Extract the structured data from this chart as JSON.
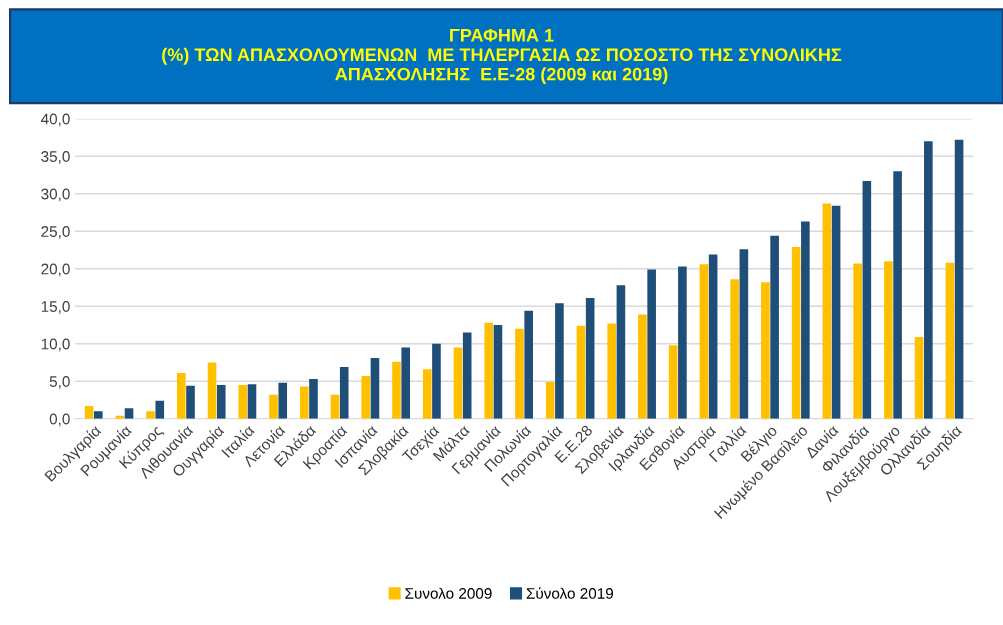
{
  "chart_data": {
    "type": "bar",
    "title": "ΓΡΑΦΗΜΑ 1\n(%) ΤΩΝ ΑΠΑΣΧΟΛΟΥΜΕΝΩΝ  ΜΕ ΤΗΛΕΡΓΑΣΙΑ ΩΣ ΠΟΣΟΣΤΟ ΤΗΣ ΣΥΝΟΛΙΚΗΣ\nΑΠΑΣΧΟΛΗΣΗΣ  Ε.Ε-28 (2009 και 2019)",
    "categories": [
      "Βουλγαρία",
      "Ρουμανία",
      "Κύπρος",
      "Λιθουανία",
      "Ουγγαρία",
      "Ιταλία",
      "Λετονία",
      "Ελλάδα",
      "Κροατία",
      "Ισπανία",
      "Σλοβακία",
      "Τσεχία",
      "Μάλτα",
      "Γερμανία",
      "Πολωνία",
      "Πορτογαλία",
      "Ε.Ε.28",
      "Σλοβενία",
      "Ιρλανδία",
      "Εσθονία",
      "Αυστρία",
      "Γαλλία",
      "Βέλγιο",
      "Ηνωμένο Βασίλειο",
      "Δανία",
      "Φιλανδία",
      "Λουξεμβούργο",
      "Ολλανδία",
      "Σουηδία"
    ],
    "series": [
      {
        "name": "Συνολο 2009",
        "color": "#ffc000",
        "values": [
          1.7,
          0.4,
          1.0,
          6.1,
          7.5,
          4.5,
          3.2,
          4.3,
          3.2,
          5.7,
          7.6,
          6.6,
          9.5,
          12.8,
          12.0,
          4.9,
          12.4,
          12.7,
          13.9,
          9.8,
          20.6,
          18.6,
          18.2,
          22.9,
          28.7,
          20.7,
          21.0,
          10.9,
          20.8
        ]
      },
      {
        "name": "Σύνολο 2019",
        "color": "#1f4e79",
        "values": [
          1.0,
          1.4,
          2.4,
          4.4,
          4.5,
          4.6,
          4.8,
          5.3,
          6.9,
          8.1,
          9.5,
          10.0,
          11.5,
          12.5,
          14.4,
          15.4,
          16.1,
          17.8,
          19.9,
          20.3,
          21.9,
          22.6,
          24.4,
          26.3,
          28.4,
          31.7,
          33.0,
          37.0,
          37.2
        ]
      }
    ],
    "ylim": [
      0,
      40
    ],
    "yticks": [
      {
        "value": 0,
        "label": "0,0"
      },
      {
        "value": 5,
        "label": "5,0"
      },
      {
        "value": 10,
        "label": "10,0"
      },
      {
        "value": 15,
        "label": "15,0"
      },
      {
        "value": 20,
        "label": "20,0"
      },
      {
        "value": 25,
        "label": "25,0"
      },
      {
        "value": 30,
        "label": "30,0"
      },
      {
        "value": 35,
        "label": "35,0"
      },
      {
        "value": 40,
        "label": "40,0"
      }
    ],
    "grid": "y",
    "legend": "bottom"
  }
}
